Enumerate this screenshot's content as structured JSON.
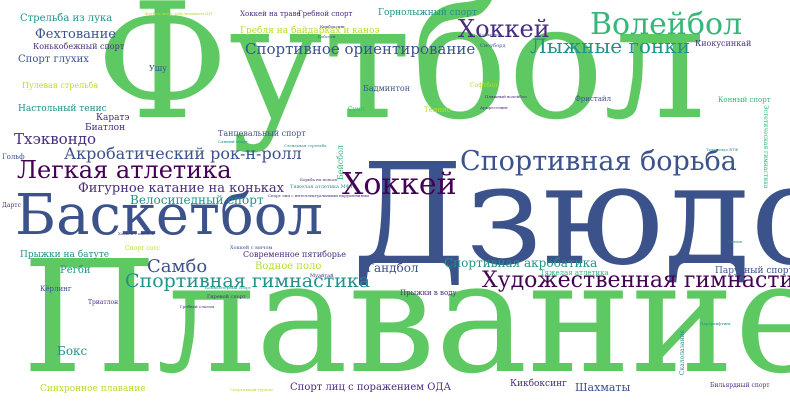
{
  "palette": {
    "light_green": "#5ec962",
    "teal": "#21918c",
    "blue": "#3b528b",
    "purple": "#472d7b",
    "dark_purple": "#440154",
    "lime": "#b5de2b",
    "teal_green": "#35b779"
  },
  "words": {
    "football": "Футбол",
    "judo": "Дзюдо",
    "swimming": "Плавание",
    "basketball": "Баскетбол",
    "volleyball": "Волейбол",
    "hockey": "Хоккей",
    "athletics": "Легкая атлетика",
    "wrestling": "Спортивная борьба",
    "rhythmic_gymnastics": "Художественная гимнастика",
    "gymnastics": "Спортивная гимнастика",
    "ski_racing": "Лыжные гонки",
    "orienteering": "Спортивное ориентирование",
    "acro_rocknroll": "Акробатический рок-н-ролл",
    "sambo": "Самбо",
    "taekwondo": "Тхэквондо",
    "figure_skating": "Фигурное катание на коньках",
    "cycling": "Велосипедный спорт",
    "handball": "Гандбол",
    "sport_acrobatics": "Спортивная акробатика",
    "fencing": "Фехтование",
    "deaf_sport": "Спорт глухих",
    "table_tennis": "Настольный тенис",
    "karate": "Каратэ",
    "biathlon": "Биатлон",
    "boxing": "Бокс",
    "rugby": "Регби",
    "trampoline": "Прыжки на батуте",
    "water_polo": "Водное поло",
    "modern_pentathlon": "Современное пятиборье",
    "synchro_swimming": "Синхронное плавание",
    "sport_oda": "Спорт лиц с поражением ОДА",
    "chess": "Шахматы",
    "kickboxing": "Кикбоксинг",
    "archery": "Стрельба из лука",
    "speed_skating": "Конькобежный спорт",
    "wushu": "Ушу",
    "bullet_shooting": "Пулевая стрельба",
    "alpine_skiing": "Горнолыжный спорт",
    "rowing": "Гребной спорт",
    "grass_hockey": "Хоккей на траве",
    "canoe": "Гребля на байдарках и каноэ",
    "kyokushin": "Киокусинкай",
    "snowboard": "Сноуборд",
    "freestyle": "Фристайл",
    "equestrian": "Конный спорт",
    "dance_sport": "Танцевальный спорт",
    "badminton": "Бадминтон",
    "baseball": "Бейсбол",
    "tennis": "Теннис",
    "sumo": "Сумо",
    "golf": "Гольф",
    "sport_climbing": "Скалолазание",
    "sailing": "Парусный спорт",
    "diving": "Прыжки в воду",
    "curling": "Кёрлинг",
    "triathlon": "Триатлон",
    "aesthetic_gymnastics": "Эстетическая гимнастика",
    "darts": "Дартс",
    "billiards": "Бильярдный спорт",
    "sport_stack": "Спорт сотс",
    "ice_hockey_sm": "Хоккей с мячом",
    "heavy_athletics": "Тяжелая атлетика",
    "softball": "Софтбол",
    "powerlifting": "Пауэрлифтинг",
    "bandy_small": "Хоккей с шайбой",
    "mini_a": "Спорт лиц с интеллектуальными нарушениями",
    "mini_b": "Тяжелая атлетика МФТ",
    "mini_c": "Гиревой спорт",
    "mini_d": "Муайтай",
    "mini_e": "Гребной слалом",
    "mini_f": "Тхэквондо ВТФ",
    "mini_g": "Сквош",
    "mini_h": "Стендовая стрельба",
    "mini_i": "Борьба на поясах",
    "mini_j": "Футбол лиц с заболеванием ЦП",
    "mini_k": "Пляжный волейбол",
    "mini_l": "Санный спорт",
    "mini_m": "Спортивный туризм",
    "mini_n": "Армрестлинг",
    "mini_o": "Полиатлон",
    "mini_p": "Хоккей",
    "mini_q": "Бобслей",
    "mini_r": "Кикбоксинг",
    "mini_s": "Компьютерный спорт"
  }
}
